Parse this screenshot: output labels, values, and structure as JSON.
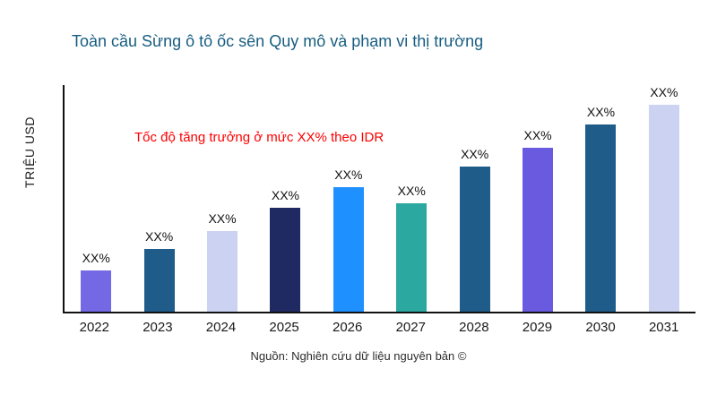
{
  "chart_data": {
    "type": "bar",
    "title": "Toàn cầu Sừng ô tô ốc sên Quy mô và phạm vi thị trường",
    "ylabel": "TRIỆU USD",
    "xlabel": "",
    "annotation": "Tốc độ tăng trưởng ở mức XX% theo IDR",
    "source": "Nguồn: Nghiên cứu dữ liệu nguyên bản ©",
    "categories": [
      "2022",
      "2023",
      "2024",
      "2025",
      "2026",
      "2027",
      "2028",
      "2029",
      "2030",
      "2031"
    ],
    "values": [
      20,
      30,
      39,
      50,
      60,
      52,
      70,
      79,
      90,
      100
    ],
    "bar_labels": [
      "XX%",
      "XX%",
      "XX%",
      "XX%",
      "XX%",
      "XX%",
      "XX%",
      "XX%",
      "XX%",
      "XX%"
    ],
    "bar_colors": [
      "#7468e4",
      "#1f5c8a",
      "#ccd3f2",
      "#1f2a63",
      "#1e90ff",
      "#2ba8a0",
      "#1f5c8a",
      "#6a5ae0",
      "#1f5c8a",
      "#ccd3f2"
    ],
    "ylim": [
      0,
      110
    ],
    "grid": false,
    "legend": false,
    "colors": {
      "title": "#175d80",
      "annotation": "#ff0000",
      "axis": "#111111"
    }
  }
}
